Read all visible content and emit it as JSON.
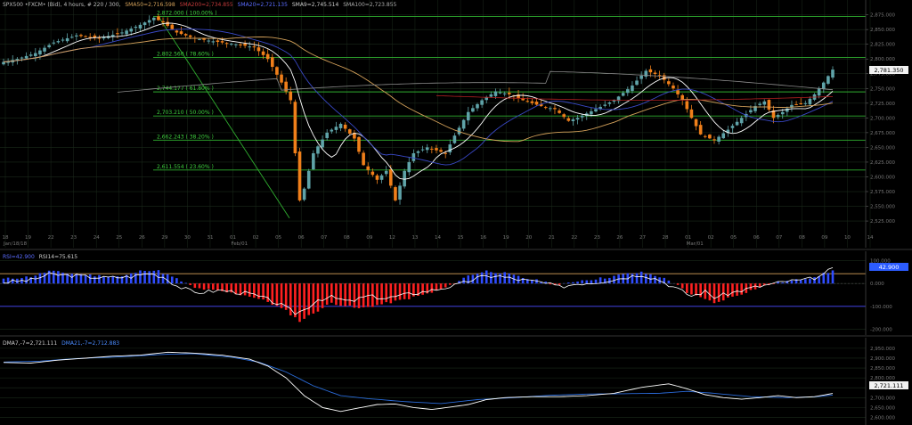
{
  "header": {
    "symbol": "SPX500 •FXCM• (Bid), 4 hours, # 220 / 300,",
    "sma50": "SMA50=2,716.598",
    "sma200": "SMA200=2,734.855",
    "sma20": "SMA20=2,721.135",
    "sma9": "SMA9=2,745.514",
    "sma100": "SMA100=2,723.855"
  },
  "rsi_header": {
    "label1": "RSI=42.900",
    "label2": "RSI14=75.615"
  },
  "dma_header": {
    "dma7": "DMA7,-7=2,721.111",
    "dma21": "DMA21,-7=2,712.883"
  },
  "price_badge": "2,781.350",
  "rsi_badge": "42.900",
  "dma_badge": "2,721.111",
  "colors": {
    "bull": "#5fa3a8",
    "bear": "#f07f1a",
    "grid": "#1b2a1b",
    "fib": "#2fae2f",
    "sma50": "#d4a15a",
    "sma200": "#b12020",
    "sma20": "#3948c6",
    "sma9": "#ffffff",
    "sma100": "#8c8c8c",
    "hist_pos": "#2f4cff",
    "hist_neg": "#ff2020",
    "osc_line": "#ffffff",
    "ob_line": "#d4a15a",
    "os_line": "#4a4aff",
    "dma7": "#ffffff",
    "dma21": "#2a6bd8"
  },
  "chart_data": [
    {
      "type": "candlestick",
      "name": "price",
      "ylim": [
        2510,
        2885
      ],
      "yticks": [
        2525,
        2550,
        2575,
        2600,
        2625,
        2650,
        2675,
        2700,
        2725,
        2750,
        2775,
        2800,
        2825,
        2850,
        2875
      ],
      "ytick_labels": [
        "2,525.000",
        "2,550.000",
        "2,575.000",
        "2,600.000",
        "2,625.000",
        "2,650.000",
        "2,675.000",
        "2,700.000",
        "2,725.000",
        "2,750.000",
        "2,775.000",
        "2,800.000",
        "2,825.000",
        "2,850.000",
        "2,875.000"
      ],
      "xticks": [
        "18",
        "19",
        "22",
        "23",
        "24",
        "25",
        "26",
        "29",
        "30",
        "31",
        "01",
        "02",
        "05",
        "06",
        "07",
        "08",
        "09",
        "12",
        "13",
        "14",
        "15",
        "16",
        "19",
        "20",
        "21",
        "22",
        "23",
        "26",
        "27",
        "28",
        "01",
        "02",
        "05",
        "06",
        "07",
        "08",
        "09",
        "10",
        "14"
      ],
      "month_labels": [
        {
          "label": "Jan/18/18",
          "at": 0
        },
        {
          "label": "Feb/01",
          "at": 10
        },
        {
          "label": "Mar/01",
          "at": 30
        }
      ],
      "fib_levels": [
        {
          "value": 2872.0,
          "label": "2,872.000 ( 100.00% )"
        },
        {
          "value": 2802.56,
          "label": "2,802.560 ( 78.60% )"
        },
        {
          "value": 2744.177,
          "label": "2,744.177 ( 61.80% )"
        },
        {
          "value": 2703.21,
          "label": "2,703.210 ( 50.00% )"
        },
        {
          "value": 2662.243,
          "label": "2,662.243 ( 38.20% )"
        },
        {
          "value": 2611.554,
          "label": "2,611.554 ( 23.60% )"
        }
      ],
      "anchors": [
        [
          0,
          2795
        ],
        [
          3,
          2800
        ],
        [
          7,
          2810
        ],
        [
          11,
          2828
        ],
        [
          16,
          2840
        ],
        [
          21,
          2835
        ],
        [
          26,
          2845
        ],
        [
          30,
          2858
        ],
        [
          33,
          2870
        ],
        [
          35,
          2862
        ],
        [
          38,
          2845
        ],
        [
          42,
          2835
        ],
        [
          46,
          2830
        ],
        [
          51,
          2825
        ],
        [
          55,
          2820
        ],
        [
          58,
          2800
        ],
        [
          61,
          2760
        ],
        [
          63,
          2730
        ],
        [
          64,
          2640
        ],
        [
          65,
          2560
        ],
        [
          66,
          2580
        ],
        [
          68,
          2640
        ],
        [
          71,
          2675
        ],
        [
          74,
          2690
        ],
        [
          77,
          2665
        ],
        [
          79,
          2620
        ],
        [
          82,
          2595
        ],
        [
          84,
          2610
        ],
        [
          86,
          2560
        ],
        [
          88,
          2610
        ],
        [
          90,
          2640
        ],
        [
          93,
          2650
        ],
        [
          97,
          2640
        ],
        [
          99,
          2670
        ],
        [
          102,
          2710
        ],
        [
          105,
          2730
        ],
        [
          108,
          2745
        ],
        [
          111,
          2740
        ],
        [
          114,
          2730
        ],
        [
          118,
          2720
        ],
        [
          121,
          2715
        ],
        [
          124,
          2695
        ],
        [
          126,
          2700
        ],
        [
          130,
          2715
        ],
        [
          134,
          2730
        ],
        [
          138,
          2755
        ],
        [
          141,
          2780
        ],
        [
          144,
          2772
        ],
        [
          147,
          2750
        ],
        [
          149,
          2730
        ],
        [
          151,
          2700
        ],
        [
          153,
          2672
        ],
        [
          156,
          2662
        ],
        [
          159,
          2680
        ],
        [
          162,
          2700
        ],
        [
          165,
          2720
        ],
        [
          167,
          2728
        ],
        [
          169,
          2700
        ],
        [
          171,
          2710
        ],
        [
          173,
          2722
        ],
        [
          176,
          2725
        ],
        [
          178,
          2740
        ],
        [
          180,
          2760
        ],
        [
          182,
          2782
        ]
      ],
      "candle_count": 183
    },
    {
      "type": "histogram+line",
      "name": "oscillator",
      "ylim": [
        -210,
        110
      ],
      "yticks": [
        -200,
        -100,
        0,
        100
      ],
      "ytick_labels": [
        "-200.000",
        "-100.000",
        "0.000",
        "100.000"
      ],
      "overbought": 42.9,
      "oversold": -100,
      "hist_anchors": [
        [
          0,
          20
        ],
        [
          6,
          30
        ],
        [
          10,
          55
        ],
        [
          14,
          45
        ],
        [
          20,
          35
        ],
        [
          26,
          30
        ],
        [
          31,
          60
        ],
        [
          34,
          55
        ],
        [
          38,
          20
        ],
        [
          42,
          -20
        ],
        [
          48,
          -35
        ],
        [
          54,
          -55
        ],
        [
          58,
          -80
        ],
        [
          62,
          -120
        ],
        [
          65,
          -165
        ],
        [
          68,
          -130
        ],
        [
          72,
          -85
        ],
        [
          78,
          -110
        ],
        [
          82,
          -95
        ],
        [
          88,
          -70
        ],
        [
          94,
          -40
        ],
        [
          98,
          -10
        ],
        [
          102,
          35
        ],
        [
          106,
          55
        ],
        [
          110,
          45
        ],
        [
          114,
          25
        ],
        [
          118,
          10
        ],
        [
          122,
          -8
        ],
        [
          126,
          12
        ],
        [
          132,
          25
        ],
        [
          136,
          40
        ],
        [
          140,
          48
        ],
        [
          144,
          30
        ],
        [
          148,
          -5
        ],
        [
          150,
          -45
        ],
        [
          154,
          -65
        ],
        [
          156,
          -88
        ],
        [
          158,
          -70
        ],
        [
          162,
          -45
        ],
        [
          166,
          -15
        ],
        [
          170,
          5
        ],
        [
          174,
          15
        ],
        [
          178,
          30
        ],
        [
          182,
          55
        ]
      ],
      "line_anchors": [
        [
          0,
          5
        ],
        [
          6,
          15
        ],
        [
          10,
          40
        ],
        [
          15,
          35
        ],
        [
          22,
          25
        ],
        [
          28,
          30
        ],
        [
          32,
          45
        ],
        [
          35,
          30
        ],
        [
          38,
          -10
        ],
        [
          42,
          -40
        ],
        [
          48,
          -30
        ],
        [
          54,
          -45
        ],
        [
          58,
          -70
        ],
        [
          61,
          -95
        ],
        [
          64,
          -130
        ],
        [
          66,
          -115
        ],
        [
          69,
          -70
        ],
        [
          72,
          -60
        ],
        [
          76,
          -80
        ],
        [
          80,
          -55
        ],
        [
          84,
          -65
        ],
        [
          88,
          -50
        ],
        [
          94,
          -30
        ],
        [
          100,
          -5
        ],
        [
          104,
          25
        ],
        [
          108,
          35
        ],
        [
          112,
          20
        ],
        [
          118,
          5
        ],
        [
          122,
          -15
        ],
        [
          126,
          0
        ],
        [
          130,
          5
        ],
        [
          136,
          25
        ],
        [
          140,
          40
        ],
        [
          144,
          15
        ],
        [
          148,
          -25
        ],
        [
          151,
          -55
        ],
        [
          154,
          -35
        ],
        [
          156,
          -60
        ],
        [
          160,
          -40
        ],
        [
          164,
          -20
        ],
        [
          168,
          -5
        ],
        [
          172,
          10
        ],
        [
          176,
          15
        ],
        [
          180,
          35
        ],
        [
          182,
          75
        ]
      ]
    },
    {
      "type": "line",
      "name": "dma",
      "ylim": [
        2575,
        2990
      ],
      "yticks": [
        2600,
        2650,
        2700,
        2750,
        2800,
        2850,
        2900,
        2950
      ],
      "ytick_labels": [
        "2,600.000",
        "2,650.000",
        "2,700.000",
        "2,750.000",
        "2,800.000",
        "2,850.000",
        "2,900.000",
        "2,950.000"
      ],
      "dma7_anchors": [
        [
          0,
          2878
        ],
        [
          6,
          2875
        ],
        [
          12,
          2890
        ],
        [
          18,
          2900
        ],
        [
          24,
          2910
        ],
        [
          30,
          2915
        ],
        [
          36,
          2930
        ],
        [
          42,
          2925
        ],
        [
          48,
          2915
        ],
        [
          54,
          2895
        ],
        [
          58,
          2860
        ],
        [
          62,
          2800
        ],
        [
          66,
          2710
        ],
        [
          70,
          2650
        ],
        [
          74,
          2630
        ],
        [
          78,
          2648
        ],
        [
          82,
          2665
        ],
        [
          86,
          2668
        ],
        [
          90,
          2650
        ],
        [
          94,
          2640
        ],
        [
          98,
          2652
        ],
        [
          102,
          2665
        ],
        [
          106,
          2690
        ],
        [
          110,
          2700
        ],
        [
          116,
          2705
        ],
        [
          122,
          2705
        ],
        [
          128,
          2710
        ],
        [
          134,
          2722
        ],
        [
          140,
          2752
        ],
        [
          146,
          2770
        ],
        [
          150,
          2745
        ],
        [
          154,
          2715
        ],
        [
          158,
          2700
        ],
        [
          162,
          2692
        ],
        [
          166,
          2700
        ],
        [
          170,
          2710
        ],
        [
          174,
          2700
        ],
        [
          178,
          2705
        ],
        [
          182,
          2721
        ]
      ],
      "dma21_anchors": [
        [
          0,
          2880
        ],
        [
          8,
          2885
        ],
        [
          16,
          2898
        ],
        [
          24,
          2905
        ],
        [
          30,
          2912
        ],
        [
          36,
          2920
        ],
        [
          42,
          2922
        ],
        [
          50,
          2905
        ],
        [
          56,
          2880
        ],
        [
          62,
          2830
        ],
        [
          68,
          2760
        ],
        [
          74,
          2710
        ],
        [
          80,
          2695
        ],
        [
          88,
          2680
        ],
        [
          96,
          2670
        ],
        [
          104,
          2690
        ],
        [
          112,
          2700
        ],
        [
          120,
          2712
        ],
        [
          128,
          2718
        ],
        [
          136,
          2720
        ],
        [
          144,
          2722
        ],
        [
          150,
          2732
        ],
        [
          156,
          2722
        ],
        [
          164,
          2705
        ],
        [
          172,
          2700
        ],
        [
          178,
          2704
        ],
        [
          182,
          2713
        ]
      ]
    }
  ]
}
